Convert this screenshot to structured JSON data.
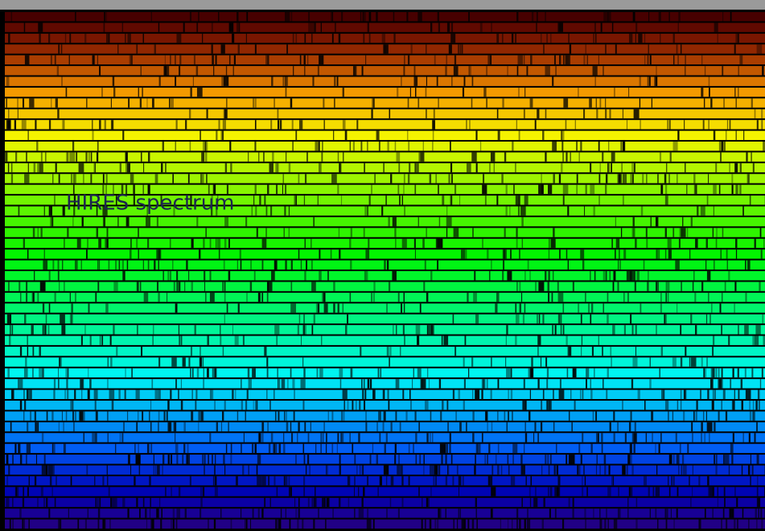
{
  "image": {
    "label": "HIRES spectrum"
  }
}
